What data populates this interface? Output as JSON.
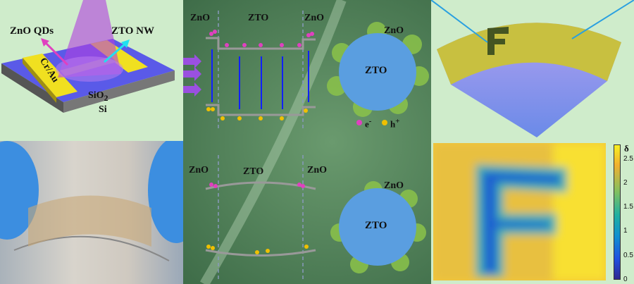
{
  "device": {
    "qd_label": "ZnO QDs",
    "nw_label": "ZTO NW",
    "electrode_label": "Cr/Au",
    "oxide_label": "SiO",
    "oxide_sub": "2",
    "substrate_label": "Si"
  },
  "band_light": {
    "left": "ZnO",
    "center": "ZTO",
    "right": "ZnO",
    "sphere_shell": "ZnO",
    "sphere_core": "ZTO",
    "electron": "e",
    "electron_sup": "-",
    "hole": "h",
    "hole_sup": "+"
  },
  "band_dark": {
    "left": "ZnO",
    "center": "ZTO",
    "right": "ZnO",
    "sphere_shell": "ZnO",
    "sphere_core": "ZTO"
  },
  "colorbar": {
    "title": "δ",
    "ticks": [
      "2.5",
      "2",
      "1.5",
      "1",
      "0.5",
      "0"
    ],
    "range": [
      0,
      2.8
    ],
    "colormap": "parula"
  },
  "colors": {
    "electron": "#e040c0",
    "hole": "#f0c000",
    "substrate": "#5a5ae8",
    "electrode": "#f0e020",
    "background": "#cfeccb"
  }
}
